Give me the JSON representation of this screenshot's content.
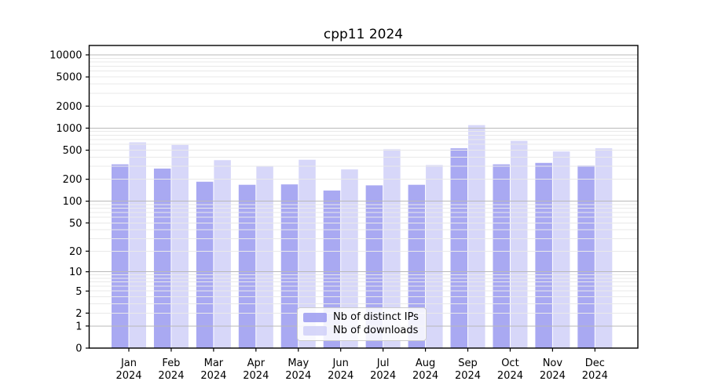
{
  "chart_data": {
    "type": "bar",
    "title": "cpp11 2024",
    "categories": [
      "Jan",
      "Feb",
      "Mar",
      "Apr",
      "May",
      "Jun",
      "Jul",
      "Aug",
      "Sep",
      "Oct",
      "Nov",
      "Dec"
    ],
    "category_year_line": "2024",
    "series": [
      {
        "name": "Nb of distinct IPs",
        "key": "distinct-ips",
        "color": "#9393ef",
        "values": [
          320,
          280,
          185,
          168,
          170,
          140,
          165,
          168,
          530,
          320,
          335,
          308
        ]
      },
      {
        "name": "Nb of downloads",
        "key": "downloads",
        "color": "#cdcdf7",
        "values": [
          640,
          590,
          365,
          300,
          370,
          273,
          515,
          313,
          1100,
          670,
          480,
          530
        ]
      }
    ],
    "fill_opacity": 0.8,
    "y_axis": {
      "scale": "symlog",
      "ticks": [
        0,
        1,
        2,
        5,
        10,
        20,
        50,
        100,
        200,
        500,
        1000,
        2000,
        5000,
        10000
      ],
      "ylim": [
        0,
        13430
      ]
    },
    "x_axis": {
      "tick_years": "2024"
    },
    "grid": {
      "show": true,
      "major_color": "#b9b9b9",
      "minor_color": "#e9e9e9"
    },
    "legend": {
      "position": "lower center"
    },
    "frame_color": "#000000"
  }
}
